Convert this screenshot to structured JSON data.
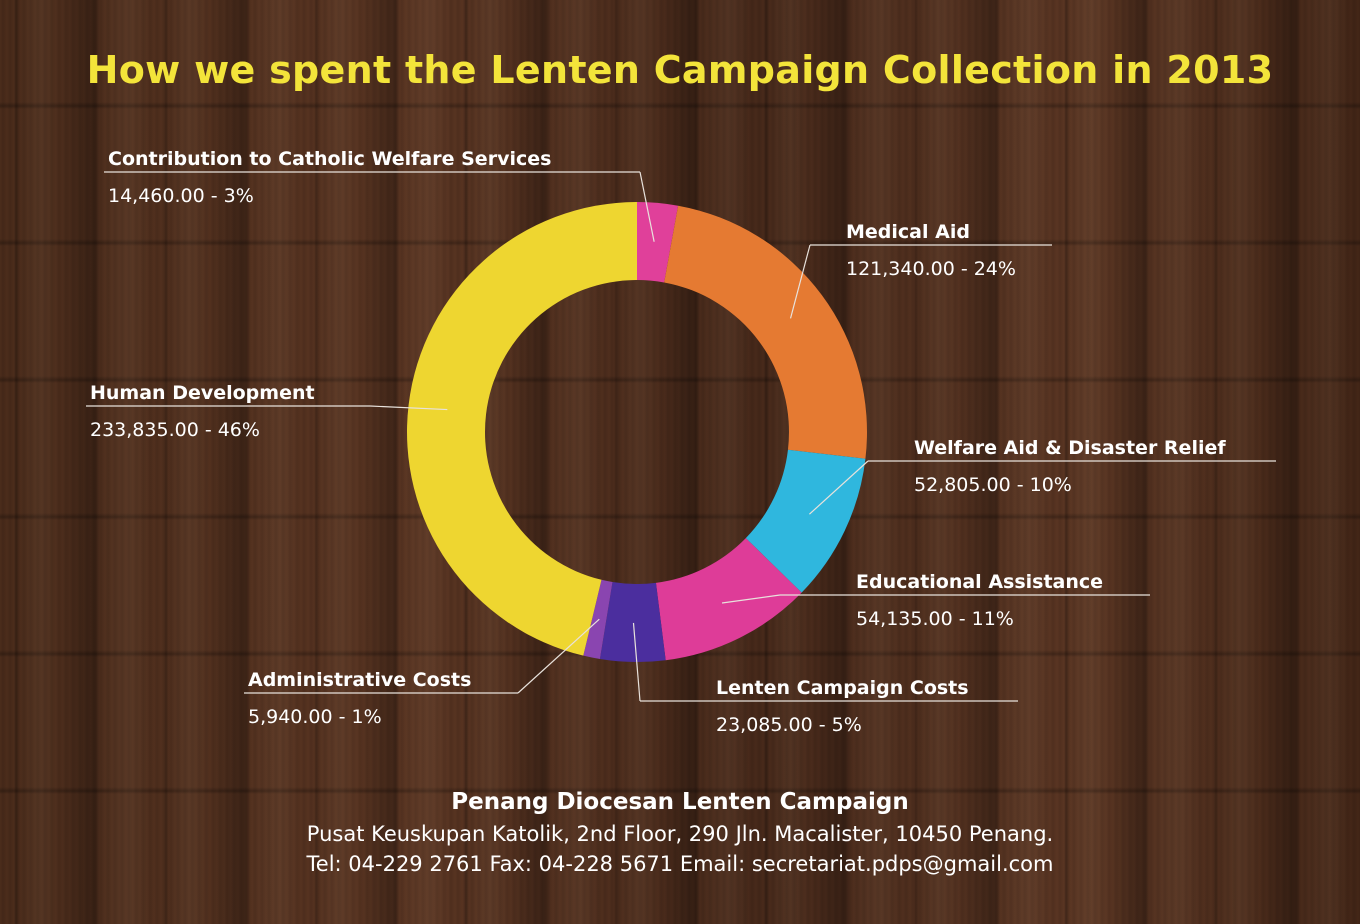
{
  "title": "How we spent the Lenten Campaign Collection in 2013",
  "chart_data": {
    "type": "pie",
    "title": "How we spent the Lenten Campaign Collection in 2013",
    "style": "donut",
    "slices": [
      {
        "label": "Contribution to Catholic Welfare Services",
        "value": 14460.0,
        "value_label": "14,460.00 - 3%",
        "percent": 3,
        "color": "#e0409a"
      },
      {
        "label": "Medical Aid",
        "value": 121340.0,
        "value_label": "121,340.00 - 24%",
        "percent": 24,
        "color": "#e57a32"
      },
      {
        "label": "Welfare Aid & Disaster Relief",
        "value": 52805.0,
        "value_label": "52,805.00 - 10%",
        "percent": 10,
        "color": "#2fb7de"
      },
      {
        "label": "Educational Assistance",
        "value": 54135.0,
        "value_label": "54,135.00 - 11%",
        "percent": 11,
        "color": "#de3c98"
      },
      {
        "label": "Lenten Campaign Costs",
        "value": 23085.0,
        "value_label": "23,085.00 - 5%",
        "percent": 5,
        "color": "#4b2e9e"
      },
      {
        "label": "Administrative Costs",
        "value": 5940.0,
        "value_label": "5,940.00 - 1%",
        "percent": 1,
        "color": "#8a45b0"
      },
      {
        "label": "Human Development",
        "value": 233835.0,
        "value_label": "233,835.00 - 46%",
        "percent": 46,
        "color": "#eed630"
      }
    ]
  },
  "footer": {
    "organization": "Penang Diocesan Lenten Campaign",
    "address": "Pusat Keuskupan Katolik, 2nd Floor, 290 Jln. Macalister, 10450 Penang.",
    "contact": "Tel: 04-229 2761   Fax: 04-228 5671   Email: secretariat.pdps@gmail.com"
  }
}
